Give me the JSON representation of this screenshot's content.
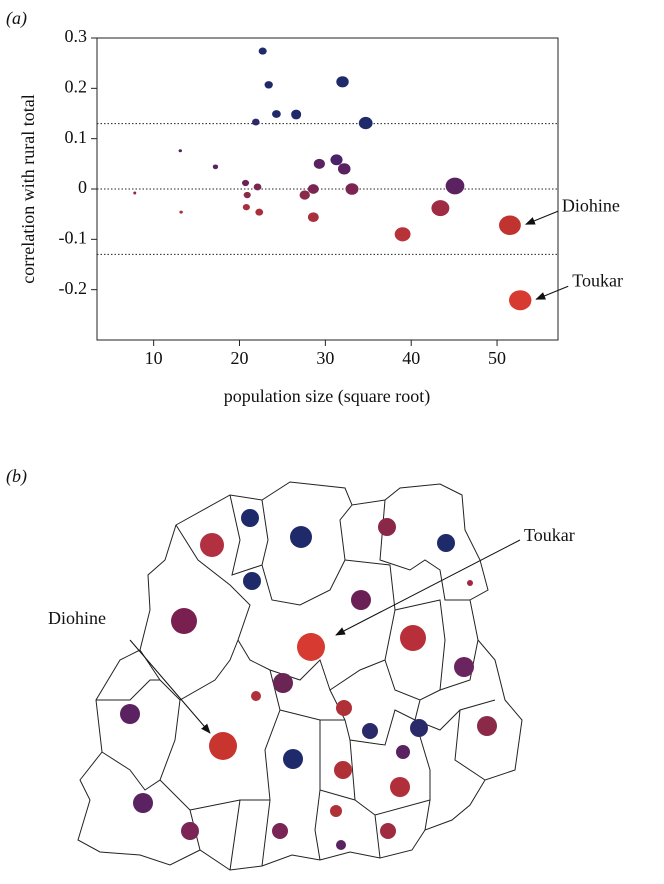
{
  "chart_data": {
    "type": "scatter",
    "panel": "(a)",
    "x_label": "population size (square root)",
    "y_label": "correlation with rural total",
    "x": [
      7.8,
      13.1,
      13.2,
      17.2,
      20.8,
      22.3,
      21.9,
      22.7,
      23.4,
      24.3,
      26.6,
      26.6,
      32.0,
      34.7,
      20.7,
      22.1,
      20.9,
      27.6,
      28.6,
      29.3,
      31.3,
      32.2,
      33.1,
      28.6,
      39.0,
      43.4,
      45.1,
      51.5,
      52.7
    ],
    "values": [
      -0.008,
      0.076,
      -0.046,
      0.044,
      -0.036,
      -0.046,
      0.133,
      0.274,
      0.207,
      0.149,
      0.149,
      0.147,
      0.213,
      0.131,
      0.012,
      0.004,
      -0.012,
      -0.012,
      0.0,
      0.05,
      0.058,
      0.04,
      0.0,
      -0.056,
      -0.09,
      -0.038,
      0.006,
      -0.072,
      -0.221
    ],
    "colors": [
      "#8a2a40",
      "#4a2268",
      "#a8303c",
      "#5a2260",
      "#a8303c",
      "#a8303c",
      "#2a2a6b",
      "#1f2a6b",
      "#1f2a6b",
      "#1f2a6b",
      "#1f2a6b",
      "#1f2a6b",
      "#1f2a6b",
      "#1f2a6b",
      "#6a2258",
      "#7a2552",
      "#8a2a48",
      "#8a2a48",
      "#7a2552",
      "#5a2260",
      "#4a2268",
      "#5a2260",
      "#7a2552",
      "#a8303c",
      "#b8323a",
      "#a02c44",
      "#5a2260",
      "#c0332f",
      "#d63a30"
    ],
    "annotations": [
      "Diohine",
      "Toukar"
    ],
    "xlim": [
      3.4,
      57.1
    ],
    "ylim": [
      -0.3,
      0.3
    ],
    "xticks": [
      10,
      20,
      30,
      40,
      50
    ],
    "yticks": [
      -0.2,
      -0.1,
      0,
      0.1,
      0.2,
      0.3
    ],
    "reference_lines": [
      0.13,
      0,
      -0.13
    ]
  },
  "map": {
    "panel": "(b)",
    "labels": [
      "Toukar",
      "Diohine"
    ]
  }
}
